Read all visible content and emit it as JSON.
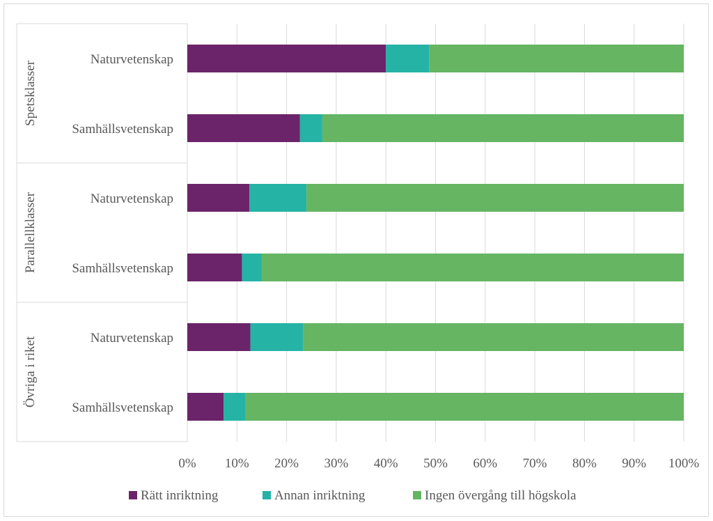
{
  "chart_data": {
    "type": "bar",
    "orientation": "horizontal",
    "stacked": "100%",
    "groups": [
      {
        "label": "Spetsklasser",
        "rows": [
          {
            "category": "Naturvetenskap",
            "values": [
              40,
              8.7,
              51.3
            ]
          },
          {
            "category": "Samhällsvetenskap",
            "values": [
              22.7,
              4.5,
              72.8
            ]
          }
        ]
      },
      {
        "label": "Parallellklasser",
        "rows": [
          {
            "category": "Naturvetenskap",
            "values": [
              12.5,
              11.5,
              76
            ]
          },
          {
            "category": "Samhällsvetenskap",
            "values": [
              11,
              4,
              85
            ]
          }
        ]
      },
      {
        "label": "Övriga i riket",
        "rows": [
          {
            "category": "Naturvetenskap",
            "values": [
              12.7,
              10.6,
              76.7
            ]
          },
          {
            "category": "Samhällsvetenskap",
            "values": [
              7.3,
              4.4,
              88.3
            ]
          }
        ]
      }
    ],
    "series": [
      {
        "name": "Rätt inriktning",
        "color": "#6b2469"
      },
      {
        "name": "Annan inriktning",
        "color": "#25b3a6"
      },
      {
        "name": "Ingen övergång till högskola",
        "color": "#65b563"
      }
    ],
    "xticks": [
      "0%",
      "10%",
      "20%",
      "30%",
      "40%",
      "50%",
      "60%",
      "70%",
      "80%",
      "90%",
      "100%"
    ],
    "xlim": [
      0,
      100
    ],
    "grid": true,
    "legend": "bottom"
  }
}
